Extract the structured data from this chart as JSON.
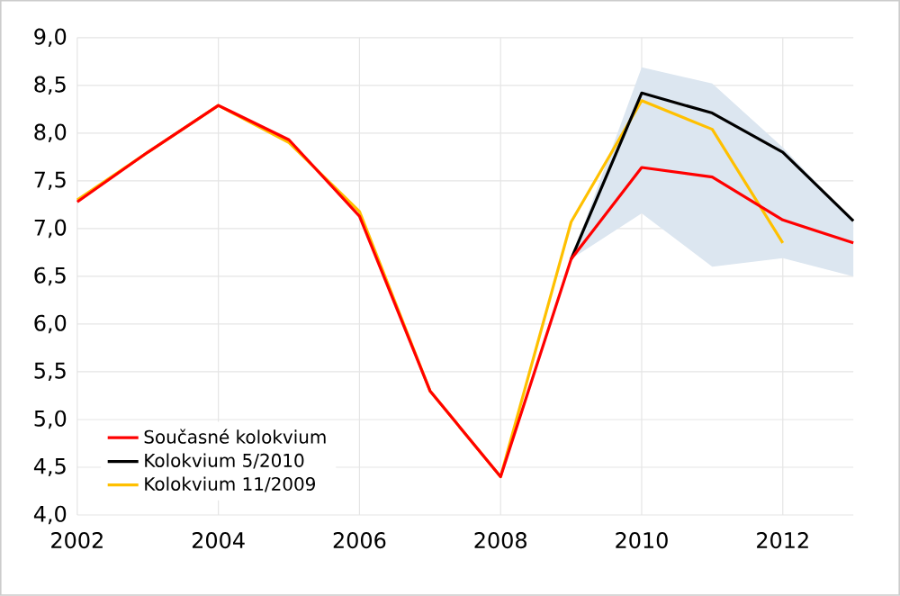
{
  "chart_data": {
    "type": "line",
    "x": [
      2002,
      2003,
      2004,
      2005,
      2006,
      2007,
      2008,
      2009,
      2010,
      2011,
      2012,
      2013
    ],
    "xlim": [
      2002,
      2013
    ],
    "xticks": [
      2002,
      2004,
      2006,
      2008,
      2010,
      2012
    ],
    "ylim": [
      4,
      9
    ],
    "yticks": [
      {
        "value": 4,
        "label": "4,0"
      },
      {
        "value": 4.5,
        "label": "4,5"
      },
      {
        "value": 5,
        "label": "5,0"
      },
      {
        "value": 5.5,
        "label": "5,5"
      },
      {
        "value": 6,
        "label": "6,0"
      },
      {
        "value": 6.5,
        "label": "6,5"
      },
      {
        "value": 7,
        "label": "7,0"
      },
      {
        "value": 7.5,
        "label": "7,5"
      },
      {
        "value": 8,
        "label": "8,0"
      },
      {
        "value": 8.5,
        "label": "8,5"
      },
      {
        "value": 9,
        "label": "9,0"
      }
    ],
    "grid": true,
    "legend": "bottom left",
    "line_style": "solid",
    "marker": "none",
    "series": [
      {
        "name": "Současné kolokvium",
        "color": "#ff0000",
        "values": [
          7.28,
          7.8,
          8.29,
          7.93,
          7.13,
          5.3,
          4.4,
          6.68,
          7.64,
          7.54,
          7.09,
          6.85
        ]
      },
      {
        "name": "Kolokvium 5/2010",
        "color": "#000000",
        "values": [
          null,
          null,
          null,
          null,
          null,
          null,
          null,
          6.68,
          8.42,
          8.21,
          7.8,
          7.08
        ],
        "lower": [
          null,
          null,
          null,
          null,
          null,
          null,
          null,
          6.68,
          7.16,
          6.6,
          6.69,
          6.5
        ],
        "upper": [
          null,
          null,
          null,
          null,
          null,
          null,
          null,
          6.68,
          8.69,
          8.52,
          7.85,
          7.08
        ]
      },
      {
        "name": "Kolokvium 11/2009",
        "color": "#ffc000",
        "values": [
          7.3,
          7.8,
          8.29,
          7.9,
          7.18,
          5.3,
          4.4,
          7.07,
          8.34,
          8.04,
          6.85,
          null
        ]
      }
    ]
  }
}
